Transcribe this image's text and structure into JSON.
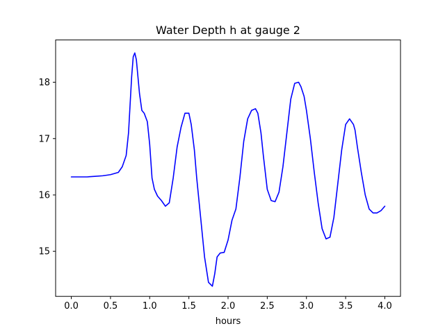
{
  "chart_data": {
    "type": "line",
    "title": "Water Depth h at gauge 2",
    "xlabel": "hours",
    "ylabel": "",
    "xlim": [
      -0.2,
      4.2
    ],
    "ylim": [
      14.2,
      18.75
    ],
    "x_ticks": [
      0.0,
      0.5,
      1.0,
      1.5,
      2.0,
      2.5,
      3.0,
      3.5,
      4.0
    ],
    "x_tick_labels": [
      "0.0",
      "0.5",
      "1.0",
      "1.5",
      "2.0",
      "2.5",
      "3.0",
      "3.5",
      "4.0"
    ],
    "y_ticks": [
      15,
      16,
      17,
      18
    ],
    "y_tick_labels": [
      "15",
      "16",
      "17",
      "18"
    ],
    "grid": false,
    "series": [
      {
        "color": "#0000ff",
        "x": [
          0.0,
          0.1,
          0.2,
          0.3,
          0.4,
          0.5,
          0.6,
          0.65,
          0.7,
          0.73,
          0.75,
          0.77,
          0.79,
          0.81,
          0.83,
          0.85,
          0.87,
          0.9,
          0.93,
          0.97,
          1.0,
          1.03,
          1.06,
          1.1,
          1.15,
          1.2,
          1.25,
          1.3,
          1.35,
          1.4,
          1.45,
          1.5,
          1.53,
          1.57,
          1.6,
          1.65,
          1.7,
          1.75,
          1.8,
          1.83,
          1.86,
          1.9,
          1.95,
          2.0,
          2.05,
          2.1,
          2.15,
          2.2,
          2.25,
          2.3,
          2.35,
          2.38,
          2.42,
          2.45,
          2.5,
          2.55,
          2.6,
          2.65,
          2.7,
          2.75,
          2.8,
          2.85,
          2.9,
          2.93,
          2.97,
          3.0,
          3.05,
          3.1,
          3.15,
          3.2,
          3.25,
          3.3,
          3.35,
          3.4,
          3.45,
          3.5,
          3.55,
          3.6,
          3.62,
          3.65,
          3.7,
          3.75,
          3.8,
          3.85,
          3.9,
          3.95,
          4.0
        ],
        "y": [
          16.32,
          16.32,
          16.32,
          16.33,
          16.34,
          16.36,
          16.4,
          16.5,
          16.7,
          17.1,
          17.6,
          18.1,
          18.45,
          18.52,
          18.4,
          18.1,
          17.8,
          17.5,
          17.45,
          17.3,
          16.9,
          16.3,
          16.1,
          15.98,
          15.9,
          15.8,
          15.86,
          16.3,
          16.85,
          17.2,
          17.45,
          17.45,
          17.25,
          16.8,
          16.3,
          15.6,
          14.9,
          14.45,
          14.38,
          14.6,
          14.9,
          14.97,
          14.98,
          15.2,
          15.55,
          15.75,
          16.3,
          16.95,
          17.35,
          17.5,
          17.53,
          17.45,
          17.1,
          16.7,
          16.1,
          15.9,
          15.88,
          16.05,
          16.5,
          17.1,
          17.7,
          17.98,
          18.0,
          17.92,
          17.75,
          17.5,
          17.0,
          16.4,
          15.85,
          15.4,
          15.22,
          15.25,
          15.6,
          16.2,
          16.8,
          17.25,
          17.35,
          17.25,
          17.15,
          16.85,
          16.4,
          16.0,
          15.75,
          15.68,
          15.68,
          15.72,
          15.8
        ]
      }
    ]
  }
}
